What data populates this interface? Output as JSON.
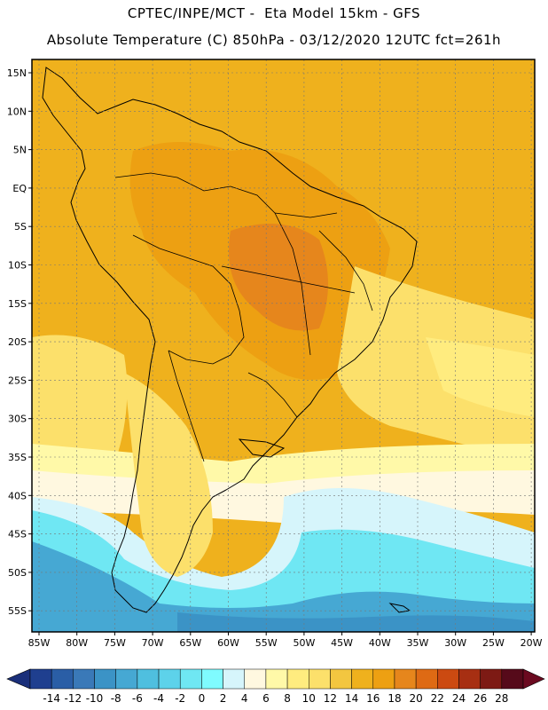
{
  "header": {
    "line1": "CPTEC/INPE/MCT -  Eta Model 15km - GFS",
    "line2": "Absolute Temperature (C) 850hPa - 03/12/2020 12UTC fct=261h"
  },
  "map": {
    "lat_labels": [
      "15N",
      "10N",
      "5N",
      "EQ",
      "5S",
      "10S",
      "15S",
      "20S",
      "25S",
      "30S",
      "35S",
      "40S",
      "45S",
      "50S",
      "55S"
    ],
    "lon_labels": [
      "85W",
      "80W",
      "75W",
      "70W",
      "65W",
      "60W",
      "55W",
      "50W",
      "45W",
      "40W",
      "35W",
      "30W",
      "25W",
      "20W"
    ]
  },
  "colorbar": {
    "labels": [
      "-14",
      "-12",
      "-10",
      "-8",
      "-6",
      "-4",
      "-2",
      "0",
      "2",
      "4",
      "6",
      "8",
      "10",
      "12",
      "14",
      "16",
      "18",
      "20",
      "22",
      "24",
      "26",
      "28"
    ],
    "colors": [
      "#1f3f8f",
      "#2a5ea6",
      "#3a79b8",
      "#3b93c6",
      "#46a8d3",
      "#4fbfdf",
      "#5dd2ea",
      "#6fe7f3",
      "#7ffbff",
      "#d6f5fb",
      "#fff8e0",
      "#fff9a8",
      "#ffec7f",
      "#fce06b",
      "#f3c640",
      "#efb11d",
      "#eda012",
      "#e6861c",
      "#de6a14",
      "#cc4a11",
      "#a72f12",
      "#7d1a14",
      "#560a1a"
    ],
    "end_low_color": "#1a2f7a",
    "end_high_color": "#6b0a20"
  }
}
